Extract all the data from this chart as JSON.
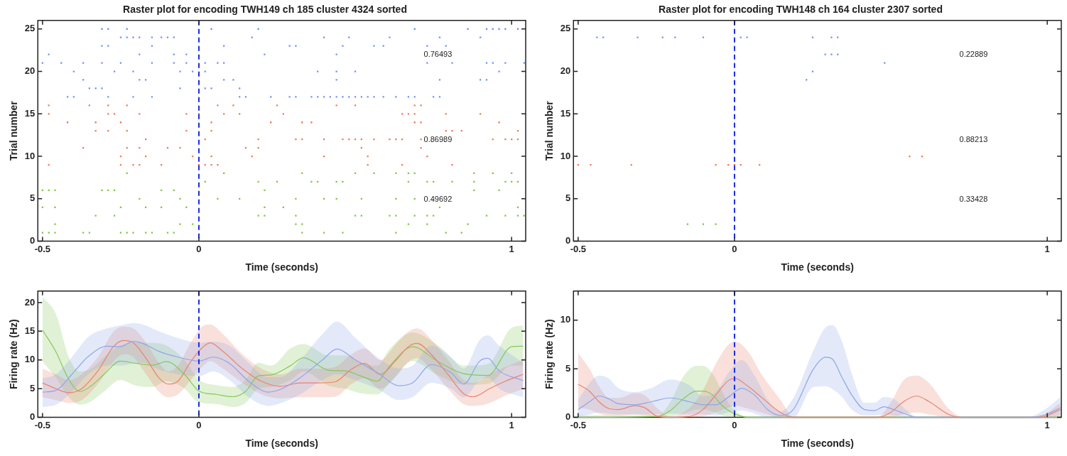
{
  "chart_data": [
    {
      "type": "scatter",
      "title": "Raster plot for encoding TWH149 ch 185 cluster 4324 sorted",
      "xlabel": "Time (seconds)",
      "ylabel": "Trial number",
      "xlim": [
        -0.515,
        1.045
      ],
      "ylim": [
        0,
        26
      ],
      "xticks": [
        -0.5,
        0,
        1
      ],
      "yticks": [
        0,
        5,
        10,
        15,
        20,
        25
      ],
      "grid": false,
      "legend": false,
      "marker": "square",
      "ref_lines": [
        {
          "axis": "x",
          "value": 0,
          "color": "#1b2be6",
          "line_style": "dashed"
        }
      ],
      "annotations": [
        "0.76493",
        "0.86989",
        "0.49692"
      ],
      "series": [
        {
          "color": "#6f93f0",
          "x": [
            -0.31,
            -0.29,
            -0.23,
            0.04,
            0.19,
            0.69,
            0.86,
            0.92,
            0.94,
            0.96,
            0.98,
            1.02,
            -0.25,
            -0.23,
            -0.21,
            -0.19,
            -0.15,
            -0.12,
            -0.1,
            -0.08,
            0.17,
            0.4,
            0.48,
            0.61,
            0.77,
            0.9,
            -0.31,
            -0.29,
            -0.15,
            0.08,
            0.29,
            0.31,
            0.46,
            0.56,
            0.59,
            0.73,
            0.79,
            -0.48,
            -0.19,
            -0.08,
            -0.04,
            0.21,
            0.44,
            -0.5,
            -0.44,
            -0.37,
            -0.31,
            -0.25,
            -0.15,
            -0.08,
            -0.04,
            0.02,
            0.06,
            0.08,
            0.73,
            0.81,
            0.92,
            0.94,
            0.98,
            1.04,
            -0.4,
            -0.27,
            -0.21,
            -0.06,
            -0.02,
            0.02,
            0.38,
            0.44,
            0.5,
            0.96,
            -0.37,
            -0.19,
            -0.17,
            0.08,
            0.11,
            0.44,
            0.77,
            0.9,
            0.92,
            -0.35,
            -0.33,
            -0.31,
            -0.06,
            0.02,
            0.04,
            0.13,
            -0.42,
            -0.4,
            -0.29,
            -0.21,
            -0.15,
            0.13,
            0.15,
            0.23,
            0.29,
            0.31,
            0.36,
            0.38,
            0.4,
            0.42,
            0.44,
            0.46,
            0.48,
            0.5,
            0.52,
            0.54,
            0.56,
            0.59,
            0.63,
            0.67,
            0.69,
            0.75,
            0.77
          ],
          "values": [
            25,
            25,
            25,
            25,
            25,
            25,
            25,
            25,
            25,
            25,
            25,
            25,
            24,
            24,
            24,
            24,
            24,
            24,
            24,
            24,
            24,
            24,
            24,
            24,
            24,
            24,
            23,
            23,
            23,
            23,
            23,
            23,
            23,
            23,
            23,
            23,
            23,
            22,
            22,
            22,
            22,
            22,
            22,
            21,
            21,
            21,
            21,
            21,
            21,
            21,
            21,
            21,
            21,
            21,
            21,
            21,
            21,
            21,
            21,
            21,
            20,
            20,
            20,
            20,
            20,
            20,
            20,
            20,
            20,
            20,
            19,
            19,
            19,
            19,
            19,
            19,
            19,
            19,
            19,
            18,
            18,
            18,
            18,
            18,
            18,
            18,
            17,
            17,
            17,
            17,
            17,
            17,
            17,
            17,
            17,
            17,
            17,
            17,
            17,
            17,
            17,
            17,
            17,
            17,
            17,
            17,
            17,
            17,
            17,
            17,
            17,
            17,
            17
          ]
        },
        {
          "color": "#f07a5a",
          "x": [
            -0.48,
            -0.35,
            -0.29,
            -0.23,
            0.06,
            0.11,
            0.25,
            0.44,
            0.5,
            0.69,
            0.71,
            -0.48,
            -0.29,
            -0.27,
            -0.19,
            -0.04,
            0,
            0.08,
            0.13,
            0.27,
            0.65,
            0.67,
            0.69,
            0.79,
            0.9,
            -0.42,
            -0.33,
            -0.25,
            0.04,
            0.23,
            0.33,
            0.36,
            0.69,
            0.71,
            0.96,
            -0.33,
            -0.29,
            -0.23,
            -0.04,
            0.04,
            0.79,
            0.81,
            0.84,
            1.02,
            -0.17,
            0.02,
            0.19,
            0.31,
            0.33,
            0.4,
            0.46,
            0.48,
            0.5,
            0.52,
            0.56,
            0.61,
            0.63,
            0.65,
            0.71,
            0.94,
            0.98,
            1.0,
            1.02,
            -0.37,
            -0.23,
            -0.19,
            -0.1,
            -0.06,
            0.15,
            0.19,
            0.52,
            0.71,
            -0.25,
            -0.17,
            -0.02,
            0.04,
            0.17,
            0.4,
            0.54,
            0.73,
            -0.48,
            -0.25,
            -0.21,
            -0.19,
            -0.12,
            0,
            0.02,
            0.04,
            0.06,
            0.54,
            0.65,
            0.81
          ],
          "values": [
            16,
            16,
            16,
            16,
            16,
            16,
            16,
            16,
            16,
            16,
            16,
            15,
            15,
            15,
            15,
            15,
            15,
            15,
            15,
            15,
            15,
            15,
            15,
            15,
            15,
            14,
            14,
            14,
            14,
            14,
            14,
            14,
            14,
            14,
            14,
            13,
            13,
            13,
            13,
            13,
            13,
            13,
            13,
            13,
            12,
            12,
            12,
            12,
            12,
            12,
            12,
            12,
            12,
            12,
            12,
            12,
            12,
            12,
            12,
            12,
            12,
            12,
            12,
            11,
            11,
            11,
            11,
            11,
            11,
            11,
            11,
            11,
            10,
            10,
            10,
            10,
            10,
            10,
            10,
            10,
            9,
            9,
            9,
            9,
            9,
            9,
            9,
            9,
            9,
            9,
            9,
            9
          ]
        },
        {
          "color": "#7cc83c",
          "x": [
            -0.23,
            0.08,
            0.33,
            0.5,
            0.56,
            0.63,
            0.67,
            0.69,
            0.88,
            0.94,
            1.0,
            0.02,
            0.19,
            0.25,
            0.36,
            0.38,
            0.44,
            0.46,
            0.67,
            0.73,
            0.75,
            0.81,
            0.88,
            0.98,
            1.0,
            1.02,
            -0.5,
            -0.48,
            -0.46,
            -0.31,
            -0.29,
            -0.27,
            -0.12,
            -0.08,
            0.21,
            0.88,
            0.96,
            -0.19,
            -0.06,
            0.06,
            0.13,
            0.31,
            0.4,
            0.44,
            0.52,
            0.63,
            0.69,
            -0.5,
            -0.46,
            -0.25,
            -0.17,
            -0.12,
            -0.04,
            0.21,
            0.27,
            0.77,
            1.02,
            -0.33,
            -0.27,
            0.19,
            0.21,
            0.31,
            0.5,
            0.52,
            0.61,
            0.63,
            0.69,
            0.73,
            0.75,
            0.92,
            0.98,
            1.02,
            1.04,
            -0.46,
            -0.06,
            -0.02,
            0.31,
            0.33,
            0.67,
            0.73,
            0.86,
            -0.5,
            -0.48,
            -0.46,
            -0.37,
            -0.35,
            -0.25,
            -0.23,
            -0.21,
            -0.17,
            -0.15,
            -0.1,
            -0.08,
            0.33,
            0.4,
            0.46,
            0.63,
            0.79,
            0.84
          ],
          "values": [
            8,
            8,
            8,
            8,
            8,
            8,
            8,
            8,
            8,
            8,
            8,
            7,
            7,
            7,
            7,
            7,
            7,
            7,
            7,
            7,
            7,
            7,
            7,
            7,
            7,
            7,
            6,
            6,
            6,
            6,
            6,
            6,
            6,
            6,
            6,
            6,
            6,
            5,
            5,
            5,
            5,
            5,
            5,
            5,
            5,
            5,
            5,
            4,
            4,
            4,
            4,
            4,
            4,
            4,
            4,
            4,
            4,
            3,
            3,
            3,
            3,
            3,
            3,
            3,
            3,
            3,
            3,
            3,
            3,
            3,
            3,
            3,
            3,
            2,
            2,
            2,
            2,
            2,
            2,
            2,
            2,
            1,
            1,
            1,
            1,
            1,
            1,
            1,
            1,
            1,
            1,
            1,
            1,
            1,
            1,
            1,
            1,
            1,
            1
          ]
        }
      ]
    },
    {
      "type": "scatter",
      "title": "Raster plot for encoding TWH148 ch 164 cluster 2307 sorted",
      "xlabel": "Time (seconds)",
      "ylabel": "Trial number",
      "xlim": [
        -0.515,
        1.045
      ],
      "ylim": [
        0,
        26
      ],
      "xticks": [
        -0.5,
        0,
        1
      ],
      "yticks": [
        0,
        5,
        10,
        15,
        20,
        25
      ],
      "grid": false,
      "legend": false,
      "marker": "square",
      "ref_lines": [
        {
          "axis": "x",
          "value": 0,
          "color": "#1b2be6",
          "line_style": "dashed"
        }
      ],
      "annotations": [
        "0.22889",
        "0.88213",
        "0.33428"
      ],
      "series": [
        {
          "color": "#6f93f0",
          "x": [
            -0.44,
            -0.42,
            -0.31,
            -0.23,
            -0.19,
            -0.1,
            0.02,
            0.04,
            0.25,
            0.31,
            0.33,
            0.29,
            0.31,
            0.33,
            0.48,
            0.25,
            0.23
          ],
          "values": [
            24,
            24,
            24,
            24,
            24,
            24,
            24,
            24,
            24,
            24,
            24,
            22,
            22,
            22,
            21,
            20,
            19
          ]
        },
        {
          "color": "#f07a5a",
          "x": [
            0.56,
            0.6,
            -0.5,
            -0.46,
            -0.33,
            -0.06,
            -0.02,
            0,
            0.02,
            0.08
          ],
          "values": [
            10,
            10,
            9,
            9,
            9,
            9,
            9,
            9,
            9,
            9
          ]
        },
        {
          "color": "#7cc83c",
          "x": [
            -0.15,
            -0.1,
            -0.06
          ],
          "values": [
            2,
            2,
            2
          ]
        }
      ]
    },
    {
      "type": "line",
      "xlabel": "Time (seconds)",
      "ylabel": "Firing rate (Hz)",
      "xlim": [
        -0.515,
        1.045
      ],
      "ylim": [
        0,
        22
      ],
      "xticks": [
        -0.5,
        0,
        1
      ],
      "yticks": [
        0,
        5,
        10,
        15,
        20
      ],
      "grid": false,
      "legend": false,
      "marker": "none",
      "line_style": "solid",
      "ref_lines": [
        {
          "axis": "x",
          "value": 0,
          "color": "#1b2be6",
          "line_style": "dashed"
        }
      ],
      "series": [
        {
          "color": "#8ea6e8",
          "x": [
            -0.5,
            -0.457,
            -0.406,
            -0.354,
            -0.293,
            -0.252,
            -0.21,
            -0.18,
            -0.128,
            -0.067,
            0,
            0.046,
            0.098,
            0.159,
            0.221,
            0.262,
            0.324,
            0.395,
            0.442,
            0.498,
            0.57,
            0.642,
            0.683,
            0.744,
            0.806,
            0.847,
            0.898,
            0.924,
            0.96,
            1.037
          ],
          "values": [
            4.4,
            4.7,
            7.5,
            10.6,
            12.4,
            12.3,
            13.2,
            12.9,
            11.5,
            10.5,
            9.8,
            10.5,
            9.4,
            6.3,
            4.4,
            4.9,
            6.9,
            10.0,
            11.9,
            10.1,
            7.8,
            5.5,
            6.0,
            9.2,
            7.8,
            5.8,
            9.8,
            10.3,
            8.1,
            6.4
          ],
          "upper": [
            6.8,
            7.5,
            10.5,
            14.0,
            15.5,
            16.0,
            16.4,
            16.2,
            15.0,
            13.8,
            13.0,
            13.2,
            12.5,
            9.5,
            7.0,
            7.0,
            10.0,
            14.5,
            16.7,
            14.0,
            10.5,
            8.5,
            9.0,
            12.5,
            10.5,
            8.5,
            13.5,
            14.3,
            12.5,
            9.5
          ],
          "lower": [
            1.8,
            2.2,
            4.5,
            7.5,
            9.0,
            9.0,
            9.4,
            9.5,
            8.3,
            7.5,
            7.2,
            8.0,
            6.5,
            3.5,
            2.0,
            2.5,
            4.0,
            6.5,
            7.5,
            6.5,
            5.0,
            3.0,
            3.5,
            6.0,
            5.0,
            3.5,
            6.5,
            6.9,
            5.0,
            3.5
          ]
        },
        {
          "color": "#e8846e",
          "x": [
            -0.5,
            -0.457,
            -0.416,
            -0.375,
            -0.323,
            -0.272,
            -0.241,
            -0.21,
            -0.169,
            -0.128,
            -0.098,
            -0.067,
            -0.026,
            0.01,
            0.036,
            0.077,
            0.139,
            0.2,
            0.262,
            0.324,
            0.385,
            0.436,
            0.488,
            0.529,
            0.58,
            0.631,
            0.672,
            0.698,
            0.744,
            0.796,
            0.847,
            0.878,
            0.929,
            0.98,
            1.037
          ],
          "values": [
            6.0,
            5.0,
            4.3,
            5.0,
            8.1,
            12.4,
            13.4,
            13.0,
            10.3,
            6.9,
            5.8,
            6.3,
            9.7,
            12.1,
            13.0,
            11.5,
            8.5,
            6.3,
            5.4,
            6.0,
            6.0,
            6.2,
            8.4,
            9.4,
            7.5,
            10.0,
            12.4,
            12.9,
            10.9,
            7.5,
            4.1,
            3.6,
            5.0,
            6.3,
            7.5
          ],
          "upper": [
            8.5,
            7.5,
            6.5,
            7.5,
            10.5,
            15.0,
            15.8,
            15.5,
            13.0,
            9.5,
            8.0,
            9.0,
            13.0,
            15.8,
            16.2,
            14.5,
            11.0,
            8.5,
            7.5,
            8.5,
            8.5,
            8.8,
            11.0,
            12.0,
            10.0,
            12.8,
            15.0,
            15.5,
            13.5,
            10.0,
            6.5,
            6.0,
            7.5,
            8.8,
            10.0
          ],
          "lower": [
            3.5,
            3.0,
            2.5,
            3.0,
            5.8,
            9.8,
            11.0,
            10.5,
            7.5,
            4.5,
            3.5,
            4.0,
            6.5,
            8.8,
            9.8,
            8.5,
            6.0,
            4.0,
            3.3,
            3.5,
            3.5,
            3.6,
            5.8,
            6.8,
            5.0,
            7.2,
            9.8,
            10.3,
            8.3,
            5.0,
            2.3,
            2.0,
            2.5,
            3.8,
            5.0
          ]
        },
        {
          "color": "#86c85a",
          "x": [
            -0.5,
            -0.457,
            -0.416,
            -0.38,
            -0.344,
            -0.303,
            -0.252,
            -0.2,
            -0.149,
            -0.103,
            -0.046,
            0,
            0.056,
            0.108,
            0.149,
            0.19,
            0.231,
            0.293,
            0.334,
            0.416,
            0.467,
            0.518,
            0.57,
            0.611,
            0.683,
            0.765,
            0.847,
            0.924,
            1.0,
            1.037
          ],
          "values": [
            15.2,
            11.4,
            6.6,
            4.5,
            5.5,
            7.5,
            9.8,
            9.4,
            9.1,
            9.7,
            7.5,
            4.6,
            4.0,
            3.6,
            4.5,
            7.2,
            7.4,
            9.0,
            10.4,
            8.2,
            8.1,
            7.2,
            6.3,
            9.0,
            12.3,
            9.7,
            7.6,
            7.3,
            12.3,
            12.4
          ],
          "upper": [
            21.0,
            18.0,
            10.5,
            8.0,
            8.5,
            10.5,
            12.5,
            13.0,
            13.0,
            12.5,
            10.0,
            6.6,
            5.6,
            5.3,
            6.5,
            9.5,
            9.0,
            12.0,
            12.8,
            10.8,
            10.8,
            9.5,
            9.0,
            12.0,
            14.8,
            12.5,
            9.0,
            9.3,
            15.6,
            16.0
          ],
          "lower": [
            9.7,
            6.9,
            3.5,
            2.2,
            2.8,
            4.5,
            6.5,
            5.5,
            5.3,
            6.3,
            5.0,
            2.6,
            2.3,
            1.8,
            2.5,
            5.0,
            5.3,
            6.5,
            8.0,
            5.5,
            5.0,
            4.2,
            4.0,
            6.0,
            9.8,
            7.3,
            5.7,
            5.8,
            9.0,
            9.0
          ]
        }
      ]
    },
    {
      "type": "line",
      "xlabel": "Time (seconds)",
      "ylabel": "Firing rate (Hz)",
      "xlim": [
        -0.515,
        1.045
      ],
      "ylim": [
        0,
        13
      ],
      "xticks": [
        -0.5,
        0,
        1
      ],
      "yticks": [
        0,
        5,
        10
      ],
      "grid": false,
      "legend": false,
      "marker": "none",
      "line_style": "solid",
      "ref_lines": [
        {
          "axis": "x",
          "value": 0,
          "color": "#1b2be6",
          "line_style": "dashed"
        }
      ],
      "series": [
        {
          "color": "#8ea6e8",
          "x": [
            -0.5,
            -0.464,
            -0.433,
            -0.402,
            -0.371,
            -0.319,
            -0.267,
            -0.205,
            -0.143,
            -0.101,
            -0.06,
            -0.019,
            0.023,
            0.064,
            0.106,
            0.147,
            0.188,
            0.251,
            0.292,
            0.313,
            0.344,
            0.375,
            0.416,
            0.447,
            0.478,
            0.509,
            0.551,
            0.582,
            0.944,
            0.996,
            1.042
          ],
          "values": [
            0.8,
            1.6,
            2.2,
            1.9,
            1.4,
            1.3,
            1.6,
            2.0,
            1.6,
            1.3,
            1.3,
            2.1,
            3.0,
            2.3,
            0.8,
            0.2,
            0.8,
            4.9,
            6.2,
            6.0,
            4.1,
            2.3,
            0.8,
            0.7,
            1.1,
            0.8,
            0.3,
            0,
            0,
            0.3,
            1.0
          ],
          "upper": [
            1.8,
            3.5,
            4.3,
            4.0,
            3.0,
            2.6,
            3.0,
            3.9,
            3.3,
            2.2,
            2.6,
            4.6,
            5.9,
            4.3,
            1.8,
            0.6,
            2.0,
            6.8,
            9.3,
            9.5,
            7.8,
            4.5,
            1.5,
            1.5,
            2.1,
            1.9,
            0.7,
            0.1,
            0.1,
            0.9,
            2.1
          ],
          "lower": [
            0.1,
            0.3,
            0.5,
            0.4,
            0.3,
            0.3,
            0.3,
            0.4,
            0.3,
            0.3,
            0.2,
            0.5,
            0.7,
            0.4,
            0,
            0,
            0,
            3.1,
            3.2,
            2.9,
            2.1,
            0.8,
            0.2,
            0.2,
            0.3,
            0.2,
            0,
            0,
            0,
            0,
            0.2
          ]
        },
        {
          "color": "#e8846e",
          "x": [
            -0.5,
            -0.464,
            -0.433,
            -0.402,
            -0.371,
            -0.319,
            -0.288,
            -0.246,
            -0.205,
            -0.143,
            -0.101,
            -0.06,
            -0.019,
            0.002,
            0.043,
            0.085,
            0.147,
            0.188,
            0.458,
            0.499,
            0.54,
            0.582,
            0.623,
            0.685,
            0.727,
            0.975,
            1.042
          ],
          "values": [
            3.4,
            2.7,
            1.6,
            0.9,
            0.8,
            1.2,
            1.0,
            0.1,
            0,
            0.1,
            0.8,
            2.3,
            3.8,
            4.0,
            3.2,
            2.1,
            0.5,
            0,
            0,
            0.5,
            1.6,
            2.2,
            1.6,
            0.3,
            0,
            0,
            0.8
          ],
          "upper": [
            6.6,
            5.0,
            3.2,
            2.0,
            2.0,
            2.5,
            2.3,
            0.9,
            0.1,
            1.0,
            2.8,
            5.5,
            7.5,
            7.8,
            6.8,
            4.5,
            1.8,
            0.1,
            0.1,
            1.5,
            3.8,
            4.3,
            3.5,
            0.9,
            0.1,
            0.1,
            1.5
          ],
          "lower": [
            1.0,
            0.8,
            0.4,
            0.2,
            0.2,
            0.3,
            0.2,
            0,
            0,
            0,
            0.1,
            0.5,
            1.0,
            1.2,
            0.9,
            0.5,
            0,
            0,
            0,
            0,
            0.3,
            0.5,
            0.3,
            0,
            0,
            0,
            0.1
          ]
        },
        {
          "color": "#86c85a",
          "x": [
            -0.5,
            -0.246,
            -0.205,
            -0.164,
            -0.122,
            -0.101,
            -0.07,
            -0.039,
            -0.008,
            0.043,
            1.042
          ],
          "values": [
            0,
            0.1,
            0.7,
            1.9,
            2.7,
            2.7,
            2.3,
            1.2,
            0.5,
            0,
            0
          ],
          "upper": [
            0.2,
            0.2,
            1.6,
            4.2,
            5.3,
            5.3,
            4.5,
            2.6,
            1.0,
            0.1,
            0.1
          ],
          "lower": [
            0,
            0,
            0.1,
            0.4,
            0.8,
            0.8,
            0.6,
            0.2,
            0,
            0,
            0
          ]
        }
      ]
    }
  ]
}
